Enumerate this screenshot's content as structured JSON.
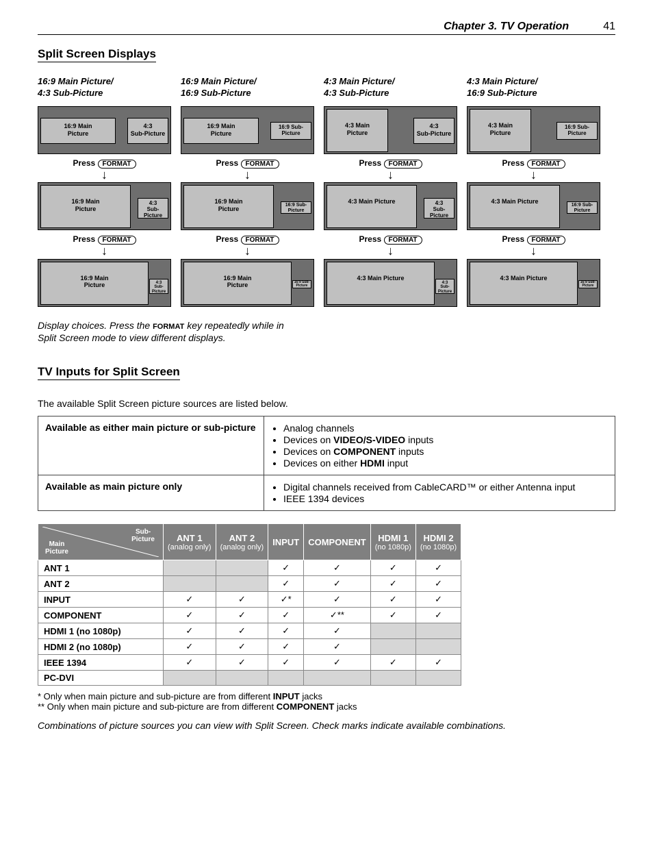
{
  "header": {
    "chapter": "Chapter 3. TV Operation",
    "page": "41"
  },
  "section1": "Split Screen Displays",
  "colTitles": [
    "16:9 Main Picture/\n4:3 Sub-Picture",
    "16:9 Main Picture/\n16:9 Sub-Picture",
    "4:3 Main Picture/\n4:3 Sub-Picture",
    "4:3 Main Picture/\n16:9 Sub-Picture"
  ],
  "labels": {
    "main169": "16:9 Main\nPicture",
    "main43": "4:3 Main\nPicture",
    "main43single": "4:3 Main Picture",
    "sub43": "4:3\nSub-Picture",
    "sub169": "16:9 Sub-\nPicture"
  },
  "press": "Press",
  "format": "FORMAT",
  "caption_a": "Display choices.  Press the ",
  "caption_b": " key repeatedly while in Split Screen mode to view different displays.",
  "section2": "TV Inputs for Split Screen",
  "intro": "The available Split Screen picture sources are listed below.",
  "avail": {
    "r1h": "Available as either main picture or sub-picture",
    "r1i": [
      "Analog channels",
      "Devices on <b>VIDEO/S-VIDEO</b> inputs",
      "Devices on <b>COMPONENT</b> inputs",
      "Devices on either <b>HDMI</b> input"
    ],
    "r2h": "Available as main picture only",
    "r2i": [
      "Digital channels received from CableCARD™ or either Antenna input",
      "IEEE 1394 devices"
    ]
  },
  "compat": {
    "corner_tr": "Sub-\nPicture",
    "corner_bl": "Main\nPicture",
    "cols": [
      {
        "t": "ANT 1",
        "s": "(analog only)"
      },
      {
        "t": "ANT 2",
        "s": "(analog only)"
      },
      {
        "t": "INPUT",
        "s": ""
      },
      {
        "t": "COMPONENT",
        "s": ""
      },
      {
        "t": "HDMI 1",
        "s": "(no 1080p)"
      },
      {
        "t": "HDMI 2",
        "s": "(no 1080p)"
      }
    ],
    "rows": [
      {
        "h": "ANT 1",
        "c": [
          "g",
          "g",
          "y",
          "y",
          "y",
          "y"
        ]
      },
      {
        "h": "ANT 2",
        "c": [
          "g",
          "g",
          "y",
          "y",
          "y",
          "y"
        ]
      },
      {
        "h": "INPUT",
        "c": [
          "y",
          "y",
          "y*",
          "y",
          "y",
          "y"
        ]
      },
      {
        "h": "COMPONENT",
        "c": [
          "y",
          "y",
          "y",
          "y**",
          "y",
          "y"
        ]
      },
      {
        "h": "HDMI 1 (no 1080p)",
        "c": [
          "y",
          "y",
          "y",
          "y",
          "g",
          "g"
        ]
      },
      {
        "h": "HDMI 2 (no 1080p)",
        "c": [
          "y",
          "y",
          "y",
          "y",
          "g",
          "g"
        ]
      },
      {
        "h": "IEEE 1394",
        "c": [
          "y",
          "y",
          "y",
          "y",
          "y",
          "y"
        ]
      },
      {
        "h": "PC-DVI",
        "c": [
          "g",
          "g",
          "g",
          "g",
          "g",
          "g"
        ]
      }
    ]
  },
  "foot1": "*  Only when main picture and sub-picture are from different <b>INPUT</b> jacks",
  "foot2": "** Only when main picture and sub-picture are from different <b>COMPONENT</b> jacks",
  "closing": "Combinations of picture sources you can view with Split Screen. Check marks indicate available combinations."
}
